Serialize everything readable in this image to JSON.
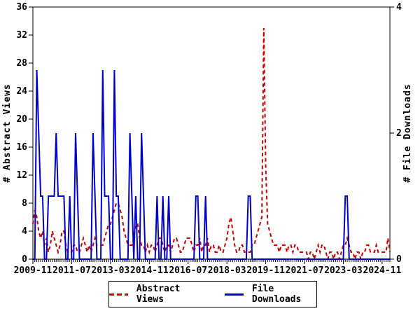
{
  "chart_data": {
    "type": "line",
    "title": "",
    "x_axis": {
      "start_month": "2009-11",
      "end_month": "2025-03",
      "tick_labels": [
        "2009-11",
        "2011-07",
        "2013-03",
        "2014-11",
        "2016-07",
        "2018-03",
        "2019-11",
        "2021-07",
        "2023-03",
        "2024-11"
      ],
      "months_per_labeled_tick": 20,
      "minor_tick_every_months": 1
    },
    "left_axis": {
      "label": "# Abstract Views",
      "min": 0,
      "max": 36,
      "tick_step": 4
    },
    "right_axis": {
      "label": "# File Downloads",
      "min": 0,
      "max": 4,
      "tick_step": 2
    },
    "grid": false,
    "legend_position": "bottom-center",
    "series": [
      {
        "name": "Abstract Views",
        "axis": "left",
        "color": "#cc0000",
        "line_style": "dashed",
        "values": [
          5,
          7,
          6,
          4,
          3,
          4,
          2,
          3,
          1,
          2,
          4,
          3,
          2,
          1,
          2,
          4,
          4,
          2,
          1,
          1,
          1,
          2,
          2,
          1,
          1,
          2,
          3,
          2,
          1,
          2,
          1,
          2,
          3,
          2,
          2,
          2,
          2,
          3,
          4,
          5,
          5,
          6,
          7,
          8,
          8,
          7,
          6,
          4,
          3,
          2,
          2,
          2,
          3,
          5,
          5,
          3,
          2,
          2,
          1,
          2,
          1,
          2,
          2,
          1,
          2,
          3,
          3,
          2,
          1,
          2,
          2,
          1,
          2,
          3,
          3,
          2,
          1,
          1,
          2,
          3,
          3,
          3,
          2,
          1,
          2,
          2,
          3,
          1,
          2,
          2,
          3,
          1,
          2,
          2,
          1,
          1,
          2,
          1,
          1,
          2,
          3,
          5,
          6,
          4,
          2,
          1,
          1,
          2,
          2,
          1,
          1,
          1,
          1,
          2,
          2,
          3,
          4,
          5,
          6,
          33,
          13,
          5,
          4,
          3,
          2,
          2,
          2,
          1,
          2,
          2,
          2,
          1,
          2,
          2,
          1,
          2,
          2,
          1,
          1,
          1,
          1,
          1,
          0,
          1,
          1,
          0,
          1,
          2,
          1,
          2,
          2,
          1,
          0,
          1,
          1,
          0,
          1,
          1,
          0,
          1,
          2,
          2,
          3,
          2,
          1,
          1,
          0,
          1,
          1,
          0,
          1,
          1,
          2,
          2,
          1,
          1,
          1,
          2,
          1,
          1,
          1,
          1,
          1,
          3,
          1
        ]
      },
      {
        "name": "File Downloads",
        "axis": "right",
        "color": "#0000cc",
        "line_style": "solid",
        "values": [
          0,
          0,
          3,
          2,
          1,
          1,
          0,
          0,
          1,
          1,
          1,
          1,
          2,
          1,
          1,
          1,
          1,
          0,
          0,
          1,
          0,
          0,
          2,
          1,
          0,
          0,
          0,
          0,
          0,
          0,
          0,
          2,
          1,
          0,
          0,
          0,
          3,
          1,
          1,
          1,
          0,
          0,
          3,
          1,
          1,
          0,
          0,
          0,
          0,
          0,
          2,
          1,
          0,
          1,
          0,
          0,
          2,
          1,
          0,
          0,
          0,
          0,
          0,
          0,
          1,
          0,
          0,
          1,
          0,
          0,
          1,
          0,
          0,
          0,
          0,
          0,
          0,
          0,
          0,
          0,
          0,
          0,
          0,
          0,
          1,
          1,
          0,
          0,
          0,
          1,
          0,
          0,
          0,
          0,
          0,
          0,
          0,
          0,
          0,
          0,
          0,
          0,
          0,
          0,
          0,
          0,
          0,
          0,
          0,
          0,
          0,
          1,
          1,
          0,
          0,
          0,
          0,
          0,
          0,
          0,
          0,
          0,
          0,
          0,
          0,
          0,
          0,
          0,
          0,
          0,
          0,
          0,
          0,
          0,
          0,
          0,
          0,
          0,
          0,
          0,
          0,
          0,
          0,
          0,
          0,
          0,
          0,
          0,
          0,
          0,
          0,
          0,
          0,
          0,
          0,
          0,
          0,
          0,
          0,
          0,
          0,
          1,
          1,
          0,
          0,
          0,
          0,
          0,
          0,
          0,
          0,
          0,
          0,
          0,
          0,
          0,
          0,
          0,
          0,
          0,
          0,
          0,
          0,
          0,
          0
        ]
      }
    ]
  },
  "colors": {
    "abstract_views": "#cc0000",
    "file_downloads": "#0000cc",
    "axis": "#000000",
    "background": "#ffffff"
  }
}
